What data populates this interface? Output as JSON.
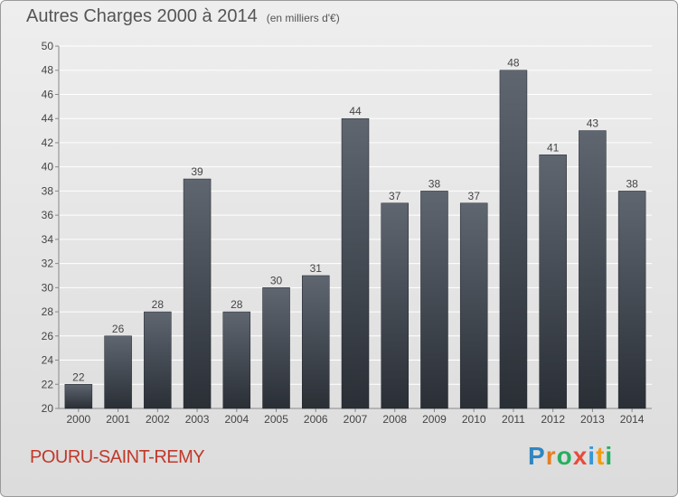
{
  "header": {
    "title": "Autres Charges 2000 à 2014",
    "unit": "(en milliers d'€)"
  },
  "commune": "POURU-SAINT-REMY",
  "logo": {
    "letters": [
      "P",
      "r",
      "o",
      "x",
      "i",
      "t",
      "i"
    ],
    "colors": [
      "#2e86c1",
      "#e67e22",
      "#27ae60",
      "#e74c3c",
      "#3498db",
      "#f39c12",
      "#27ae60"
    ]
  },
  "colors": {
    "bar_top": "#5f6670",
    "bar_bottom": "#2a2f36",
    "grid": "#ffffff",
    "text": "#444444"
  },
  "chart_data": {
    "type": "bar",
    "title": "Autres Charges 2000 à 2014",
    "categories": [
      "2000",
      "2001",
      "2002",
      "2003",
      "2004",
      "2005",
      "2006",
      "2007",
      "2008",
      "2009",
      "2010",
      "2011",
      "2012",
      "2013",
      "2014"
    ],
    "values": [
      22,
      26,
      28,
      39,
      28,
      30,
      31,
      44,
      37,
      38,
      37,
      48,
      41,
      43,
      38
    ],
    "ylim": [
      20,
      50
    ],
    "yticks": [
      20,
      22,
      24,
      26,
      28,
      30,
      32,
      34,
      36,
      38,
      40,
      42,
      44,
      46,
      48,
      50
    ],
    "grid": true
  }
}
